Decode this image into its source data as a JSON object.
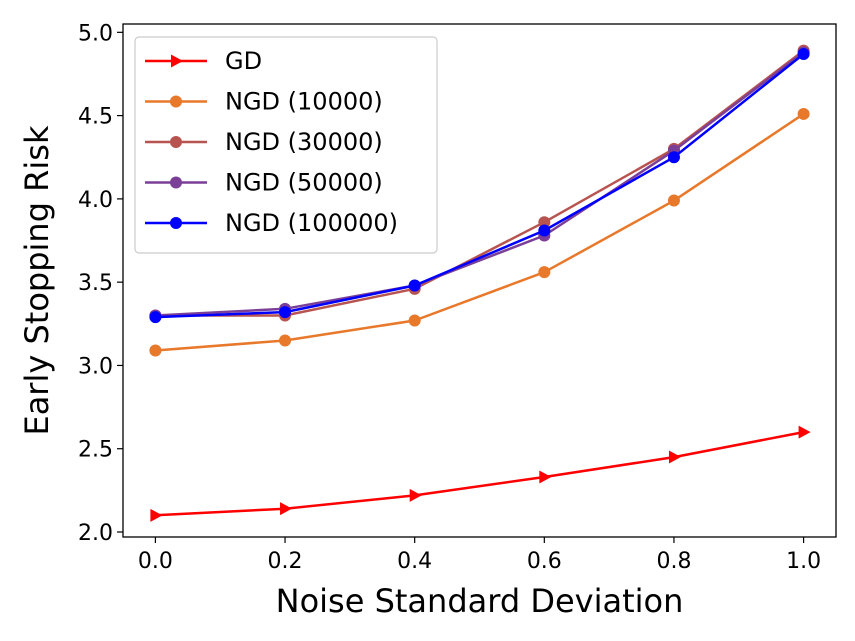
{
  "chart_data": {
    "type": "line",
    "title": "",
    "xlabel": "Noise Standard Deviation",
    "ylabel": "Early Stopping Risk",
    "x": [
      0.0,
      0.2,
      0.4,
      0.6,
      0.8,
      1.0
    ],
    "xlim": [
      -0.05,
      1.05
    ],
    "ylim": [
      1.97,
      5.05
    ],
    "xticks": [
      0.0,
      0.2,
      0.4,
      0.6,
      0.8,
      1.0
    ],
    "xtick_labels": [
      "0.0",
      "0.2",
      "0.4",
      "0.6",
      "0.8",
      "1.0"
    ],
    "yticks": [
      2.0,
      2.5,
      3.0,
      3.5,
      4.0,
      4.5,
      5.0
    ],
    "ytick_labels": [
      "2.0",
      "2.5",
      "3.0",
      "3.5",
      "4.0",
      "4.5",
      "5.0"
    ],
    "grid": false,
    "legend_position": "top-left",
    "series": [
      {
        "name": "GD",
        "color": "#ff0000",
        "marker": "triangle-right",
        "values": [
          2.1,
          2.14,
          2.22,
          2.33,
          2.45,
          2.6
        ]
      },
      {
        "name": "NGD (10000)",
        "color": "#e8782a",
        "marker": "circle",
        "values": [
          3.09,
          3.15,
          3.27,
          3.56,
          3.99,
          4.51
        ]
      },
      {
        "name": "NGD (30000)",
        "color": "#b85450",
        "marker": "circle",
        "values": [
          3.3,
          3.3,
          3.46,
          3.86,
          4.3,
          4.89
        ]
      },
      {
        "name": "NGD (50000)",
        "color": "#7b3f98",
        "marker": "circle",
        "values": [
          3.3,
          3.34,
          3.48,
          3.78,
          4.29,
          4.88
        ]
      },
      {
        "name": "NGD (100000)",
        "color": "#0000ff",
        "marker": "circle",
        "values": [
          3.29,
          3.32,
          3.48,
          3.81,
          4.25,
          4.87
        ]
      }
    ]
  }
}
